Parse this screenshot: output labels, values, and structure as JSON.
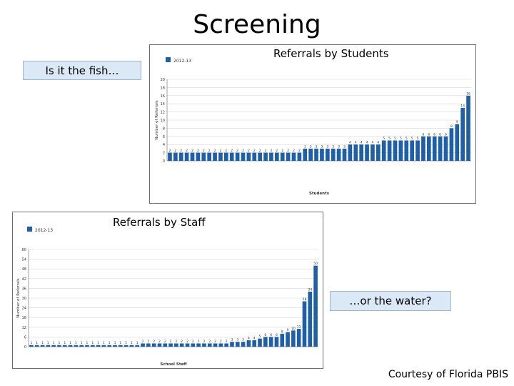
{
  "title": "Screening",
  "callouts": {
    "fish": "Is it the fish…",
    "water": "…or the water?"
  },
  "labels": {
    "students": "Referrals by Students",
    "staff": "Referrals by Staff"
  },
  "credit": "Courtesy of Florida PBIS",
  "colors": {
    "bar": "#1f5fa8",
    "callout_bg": "#dbe9f6",
    "grid": "#d6d6d6"
  },
  "chart_data": [
    {
      "type": "bar",
      "title": "Referrals by Students",
      "legend": "2012-13",
      "legend_position": "top-left",
      "xlabel": "Students",
      "ylabel": "Number of Referrals",
      "ylim": [
        0,
        20
      ],
      "yticks": [
        0,
        2,
        4,
        6,
        8,
        10,
        12,
        14,
        16,
        18,
        20
      ],
      "grid": true,
      "values": [
        2,
        2,
        2,
        2,
        2,
        2,
        2,
        2,
        2,
        2,
        2,
        2,
        2,
        2,
        2,
        2,
        2,
        2,
        2,
        2,
        2,
        2,
        2,
        2,
        3,
        3,
        3,
        3,
        3,
        3,
        3,
        3,
        4,
        4,
        4,
        4,
        4,
        4,
        5,
        5,
        5,
        5,
        5,
        5,
        5,
        6,
        6,
        6,
        6,
        6,
        8,
        9,
        13,
        16
      ]
    },
    {
      "type": "bar",
      "title": "Referrals by Staff",
      "legend": "2012-13",
      "legend_position": "top-left",
      "xlabel": "School Staff",
      "ylabel": "Number of Referrals",
      "ylim": [
        0,
        60
      ],
      "yticks": [
        0,
        6,
        12,
        18,
        24,
        30,
        36,
        42,
        48,
        54,
        60
      ],
      "grid": true,
      "values": [
        1,
        1,
        1,
        1,
        1,
        1,
        1,
        1,
        1,
        1,
        1,
        1,
        1,
        1,
        1,
        1,
        1,
        1,
        1,
        1,
        2,
        2,
        2,
        2,
        2,
        2,
        2,
        2,
        2,
        2,
        2,
        2,
        2,
        2,
        2,
        2,
        3,
        3,
        3,
        4,
        4,
        5,
        6,
        6,
        6,
        8,
        9,
        10,
        11,
        28,
        34,
        50
      ]
    }
  ]
}
